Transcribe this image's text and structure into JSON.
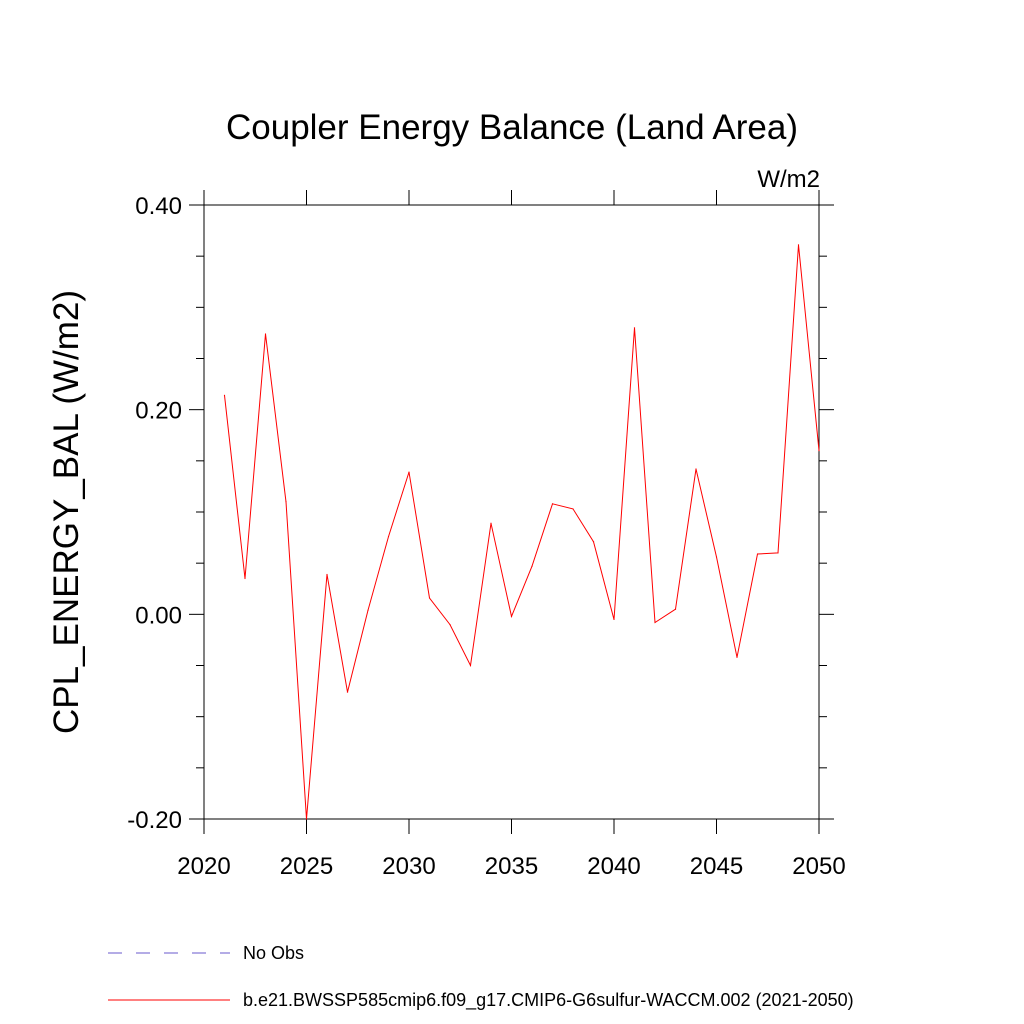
{
  "chart_data": {
    "type": "line",
    "title": "Coupler Energy Balance (Land Area)",
    "units": "W/m2",
    "ylabel": "CPL_ENERGY_BAL  (W/m2)",
    "xlabel": "",
    "xlim": [
      2020,
      2050
    ],
    "ylim": [
      -0.2,
      0.4
    ],
    "x_ticks": [
      2020,
      2025,
      2030,
      2035,
      2040,
      2045,
      2050
    ],
    "x_tick_labels": [
      "2020",
      "2025",
      "2030",
      "2035",
      "2040",
      "2045",
      "2050"
    ],
    "y_ticks": [
      -0.2,
      0.0,
      0.2,
      0.4
    ],
    "y_tick_labels": [
      "-0.20",
      "0.00",
      "0.20",
      "0.40"
    ],
    "grid": false,
    "legend_position": "bottom",
    "series": [
      {
        "name": "b.e21.BWSSP585cmip6.f09_g17.CMIP6-G6sulfur-WACCM.002 (2021-2050)",
        "color": "#ff0000",
        "style": "solid",
        "x": [
          2021,
          2022,
          2023,
          2024,
          2025,
          2026,
          2027,
          2028,
          2029,
          2030,
          2031,
          2032,
          2033,
          2034,
          2035,
          2036,
          2037,
          2038,
          2039,
          2040,
          2041,
          2042,
          2043,
          2044,
          2045,
          2046,
          2047,
          2048,
          2049,
          2050
        ],
        "values": [
          0.214,
          0.035,
          0.274,
          0.11,
          -0.2,
          0.039,
          -0.076,
          0.004,
          0.076,
          0.139,
          0.016,
          -0.01,
          -0.05,
          0.089,
          -0.002,
          0.047,
          0.108,
          0.103,
          0.071,
          -0.005,
          0.28,
          -0.008,
          0.005,
          0.142,
          0.056,
          -0.042,
          0.059,
          0.06,
          0.361,
          0.16
        ]
      }
    ],
    "legend": [
      {
        "label": "No Obs",
        "color": "#6a5acd",
        "style": "dashed"
      },
      {
        "label": "b.e21.BWSSP585cmip6.f09_g17.CMIP6-G6sulfur-WACCM.002 (2021-2050)",
        "color": "#ff0000",
        "style": "solid"
      }
    ]
  }
}
